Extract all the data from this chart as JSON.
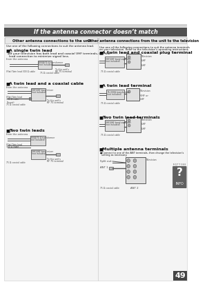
{
  "page_bg": "#ffffff",
  "header_bar_color": "#d0d0d0",
  "header_text": "If the antenna connector doesn’t match",
  "header_text_color": "#ffffff",
  "header_bg": "#505050",
  "left_box_title": "Other antenna connections to the unit",
  "right_box_title": "Other antenna connections from the unit to the television",
  "left_box_bg": "#e0e0e0",
  "right_box_bg": "#e0e0e0",
  "left_desc": "Use one of the following connections to suit the antenna lead.",
  "right_desc1": "Use one of the following connections to suit the antenna terminals",
  "right_desc2": "on your television. Refer to the television’s operating instructions.",
  "left_sections": [
    "A single twin lead",
    "A twin lead and a coaxial cable",
    "Two twin leads"
  ],
  "right_sections": [
    "A twin lead and coaxial plug terminal",
    "A twin lead terminal",
    "Two twin lead terminals",
    "Multiple antenna terminals"
  ],
  "left_sub": [
    [
      "≥If your television has both lead and coaxial VHF terminals, use the",
      "lead connection to minimize signal loss."
    ]
  ],
  "footer_page": "49",
  "footer_bg": "#444444",
  "footer_text_color": "#ffffff",
  "diagram_gray": "#999999",
  "diagram_dark": "#555555",
  "diagram_light": "#cccccc",
  "text_color": "#111111",
  "sub_text_color": "#444444",
  "label_fontsize": 4.5,
  "sub_fontsize": 3.2,
  "diag_fontsize": 2.8
}
